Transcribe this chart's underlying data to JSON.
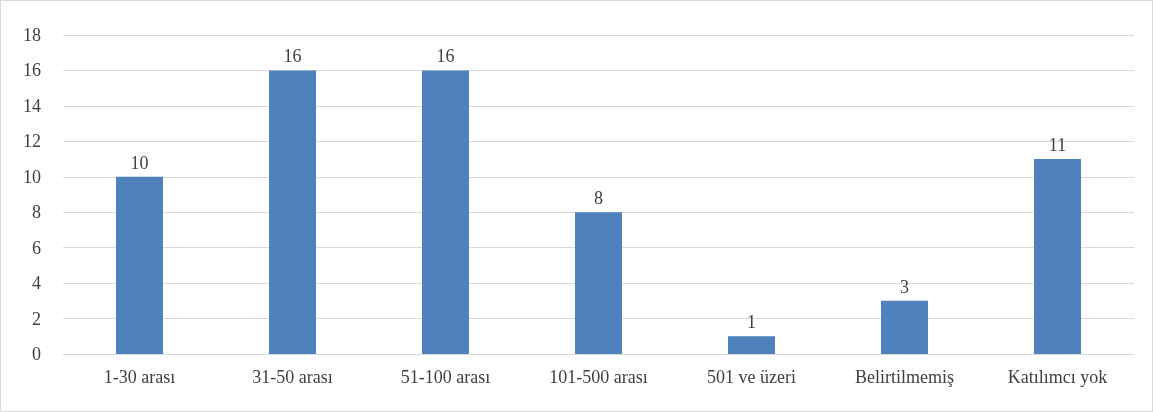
{
  "chart_data": {
    "type": "bar",
    "categories": [
      "1-30 arası",
      "31-50 arası",
      "51-100 arası",
      "101-500 arası",
      "501 ve üzeri",
      "Belirtilmemiş",
      "Katılımcı yok"
    ],
    "values": [
      10,
      16,
      16,
      8,
      1,
      3,
      11
    ],
    "color": "#4f81bd",
    "ylim": [
      0,
      18
    ],
    "yticks": [
      0,
      2,
      4,
      6,
      8,
      10,
      12,
      14,
      16,
      18
    ],
    "grid": "y",
    "data_labels": true
  }
}
